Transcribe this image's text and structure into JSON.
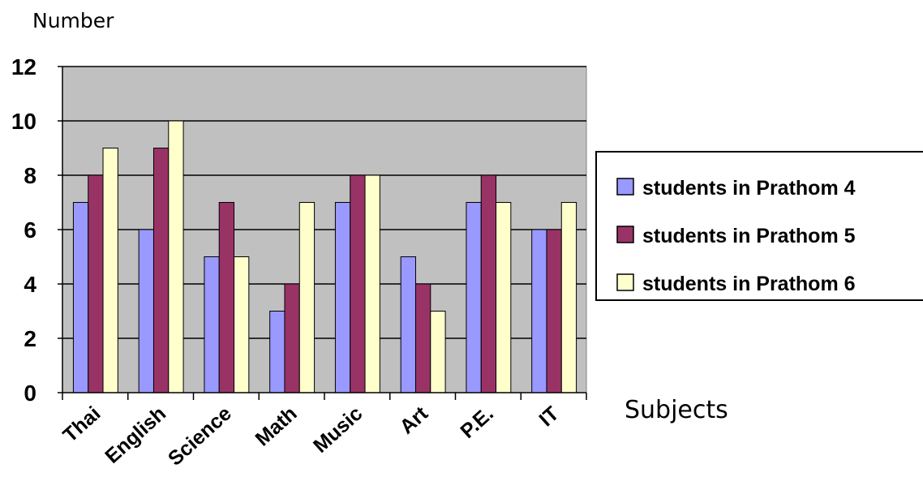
{
  "chart_data": {
    "type": "bar",
    "title": "",
    "ylabel": "Number",
    "xlabel": "Subjects",
    "categories": [
      "Thai",
      "English",
      "Science",
      "Math",
      "Music",
      "Art",
      "P.E.",
      "IT"
    ],
    "series": [
      {
        "name": "students in Prathom 4",
        "color": "#9999ff",
        "values": [
          7,
          6,
          5,
          3,
          7,
          5,
          7,
          6
        ]
      },
      {
        "name": "students in Prathom 5",
        "color": "#993366",
        "values": [
          8,
          9,
          7,
          4,
          8,
          4,
          8,
          6
        ]
      },
      {
        "name": "students in Prathom 6",
        "color": "#ffffcc",
        "values": [
          9,
          10,
          5,
          7,
          8,
          3,
          7,
          7
        ]
      }
    ],
    "ylim": [
      0,
      12
    ],
    "yticks": [
      "0",
      "2",
      "4",
      "6",
      "8",
      "10",
      "12"
    ],
    "grid": true,
    "plot_background": "#c0c0c0",
    "legend_position": "right"
  }
}
